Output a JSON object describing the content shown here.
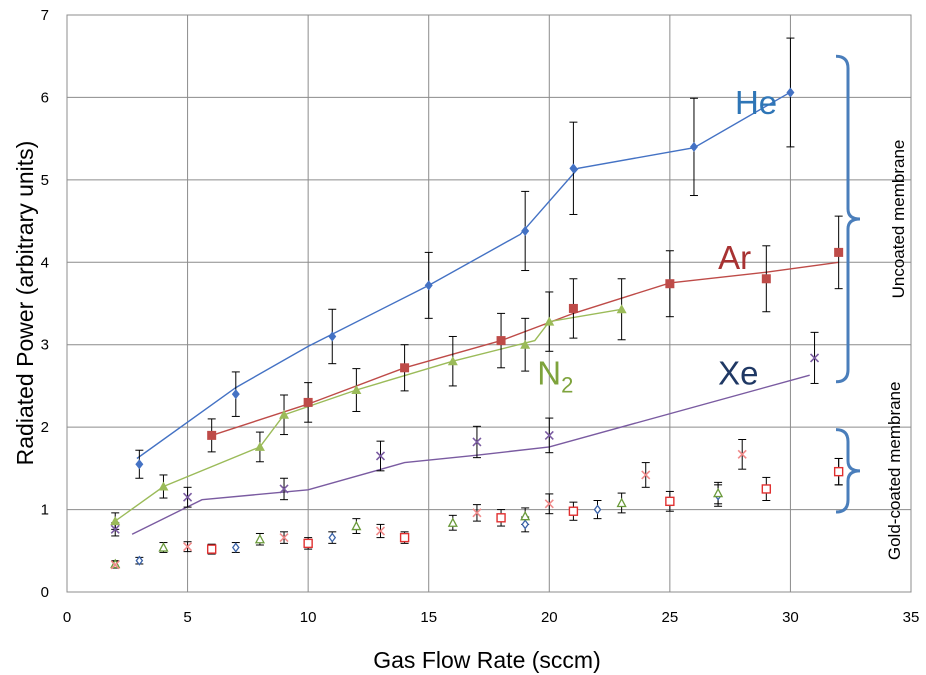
{
  "chart_data": {
    "type": "scatter",
    "xlabel": "Gas Flow Rate (sccm)",
    "ylabel": "Radiated Power (arbitrary units)",
    "xlim": [
      0,
      35
    ],
    "ylim": [
      0,
      7
    ],
    "xticks": [
      "0",
      "5",
      "10",
      "15",
      "20",
      "25",
      "30",
      "35"
    ],
    "yticks": [
      "0",
      "1",
      "2",
      "3",
      "4",
      "5",
      "6",
      "7"
    ],
    "grid": true,
    "series_labels": [
      {
        "text": "He",
        "color": "#2e75b6",
        "x": 27.7,
        "y": 5.8
      },
      {
        "text": "Ar",
        "color": "#a83232",
        "x": 27.0,
        "y": 3.92
      },
      {
        "text": "N",
        "sub": "2",
        "color": "#7ea33c",
        "x": 19.5,
        "y": 2.52
      },
      {
        "text": "Xe",
        "color": "#1f3864",
        "x": 27.0,
        "y": 2.52
      }
    ],
    "brackets": [
      {
        "label": "Uncoated membrane",
        "y_top": 6.5,
        "y_bottom": 2.55
      },
      {
        "label": "Gold-coated membrane",
        "y_top": 1.97,
        "y_bottom": 0.97
      }
    ],
    "series": [
      {
        "key": "He",
        "membrane": "uncoated",
        "marker": "diamond",
        "color": "#4472c4",
        "points": [
          {
            "x": 3,
            "y": 1.55,
            "err": 0.17
          },
          {
            "x": 7,
            "y": 2.4,
            "err": 0.27
          },
          {
            "x": 11,
            "y": 3.1,
            "err": 0.33
          },
          {
            "x": 15,
            "y": 3.72,
            "err": 0.4
          },
          {
            "x": 19,
            "y": 4.38,
            "err": 0.48
          },
          {
            "x": 21,
            "y": 5.14,
            "err": 0.56
          },
          {
            "x": 26,
            "y": 5.4,
            "err": 0.59
          },
          {
            "x": 30,
            "y": 6.06,
            "err": 0.66
          }
        ],
        "fit": [
          [
            2.9,
            1.62
          ],
          [
            7,
            2.48
          ],
          [
            10,
            2.98
          ],
          [
            15,
            3.72
          ],
          [
            18.8,
            4.34
          ],
          [
            21.2,
            5.14
          ],
          [
            26,
            5.39
          ],
          [
            30.1,
            6.08
          ]
        ]
      },
      {
        "key": "Ar",
        "membrane": "uncoated",
        "marker": "square",
        "color": "#be4b48",
        "points": [
          {
            "x": 6,
            "y": 1.9,
            "err": 0.2
          },
          {
            "x": 10,
            "y": 2.3,
            "err": 0.24
          },
          {
            "x": 14,
            "y": 2.72,
            "err": 0.28
          },
          {
            "x": 18,
            "y": 3.05,
            "err": 0.33
          },
          {
            "x": 21,
            "y": 3.44,
            "err": 0.36
          },
          {
            "x": 25,
            "y": 3.74,
            "err": 0.4
          },
          {
            "x": 29,
            "y": 3.8,
            "err": 0.4
          },
          {
            "x": 32,
            "y": 4.12,
            "err": 0.44
          }
        ],
        "fit": [
          [
            6,
            1.9
          ],
          [
            10,
            2.28
          ],
          [
            14,
            2.72
          ],
          [
            18,
            3.05
          ],
          [
            21,
            3.38
          ],
          [
            25,
            3.75
          ],
          [
            29,
            3.88
          ],
          [
            32,
            4.0
          ]
        ]
      },
      {
        "key": "N2",
        "membrane": "uncoated",
        "marker": "triangle",
        "color": "#9bbb59",
        "points": [
          {
            "x": 2,
            "y": 0.86,
            "err": 0.1
          },
          {
            "x": 4,
            "y": 1.28,
            "err": 0.14
          },
          {
            "x": 8,
            "y": 1.76,
            "err": 0.18
          },
          {
            "x": 9,
            "y": 2.15,
            "err": 0.24
          },
          {
            "x": 12,
            "y": 2.45,
            "err": 0.26
          },
          {
            "x": 16,
            "y": 2.8,
            "err": 0.3
          },
          {
            "x": 19,
            "y": 3.0,
            "err": 0.32
          },
          {
            "x": 20,
            "y": 3.28,
            "err": 0.36
          },
          {
            "x": 23,
            "y": 3.43,
            "err": 0.37
          }
        ],
        "fit": [
          [
            2,
            0.86
          ],
          [
            4,
            1.28
          ],
          [
            8,
            1.76
          ],
          [
            9,
            2.15
          ],
          [
            12,
            2.45
          ],
          [
            16,
            2.8
          ],
          [
            19.4,
            3.05
          ],
          [
            20,
            3.28
          ],
          [
            23,
            3.43
          ]
        ]
      },
      {
        "key": "Xe",
        "membrane": "uncoated",
        "marker": "x",
        "color": "#7a5ba1",
        "points": [
          {
            "x": 2,
            "y": 0.76,
            "err": 0.08
          },
          {
            "x": 5,
            "y": 1.15,
            "err": 0.12
          },
          {
            "x": 9,
            "y": 1.25,
            "err": 0.13
          },
          {
            "x": 13,
            "y": 1.65,
            "err": 0.18
          },
          {
            "x": 17,
            "y": 1.82,
            "err": 0.19
          },
          {
            "x": 20,
            "y": 1.9,
            "err": 0.21
          },
          {
            "x": 31,
            "y": 2.84,
            "err": 0.31
          }
        ],
        "fit": [
          [
            2.7,
            0.7
          ],
          [
            5.6,
            1.12
          ],
          [
            10,
            1.24
          ],
          [
            14,
            1.57
          ],
          [
            17,
            1.66
          ],
          [
            20,
            1.76
          ],
          [
            30.8,
            2.63
          ]
        ]
      },
      {
        "key": "He",
        "membrane": "gold-coated",
        "marker": "open-diamond",
        "color": "#3b63a8",
        "points": [
          {
            "x": 3,
            "y": 0.38,
            "err": 0.04
          },
          {
            "x": 7,
            "y": 0.54,
            "err": 0.06
          },
          {
            "x": 11,
            "y": 0.66,
            "err": 0.07
          },
          {
            "x": 19,
            "y": 0.82,
            "err": 0.09
          },
          {
            "x": 22,
            "y": 1.0,
            "err": 0.11
          },
          {
            "x": 27,
            "y": 1.17,
            "err": 0.13
          },
          {
            "x": 32,
            "y": 1.46,
            "err": 0.16
          }
        ]
      },
      {
        "key": "Ar",
        "membrane": "gold-coated",
        "marker": "open-square",
        "color": "#e03030",
        "points": [
          {
            "x": 6,
            "y": 0.52,
            "err": 0.06
          },
          {
            "x": 10,
            "y": 0.59,
            "err": 0.07
          },
          {
            "x": 14,
            "y": 0.66,
            "err": 0.07
          },
          {
            "x": 18,
            "y": 0.9,
            "err": 0.1
          },
          {
            "x": 21,
            "y": 0.98,
            "err": 0.11
          },
          {
            "x": 25,
            "y": 1.1,
            "err": 0.12
          },
          {
            "x": 29,
            "y": 1.25,
            "err": 0.14
          },
          {
            "x": 32,
            "y": 1.46,
            "err": 0.16
          }
        ]
      },
      {
        "key": "N2",
        "membrane": "gold-coated",
        "marker": "open-triangle",
        "color": "#6a9a3a",
        "points": [
          {
            "x": 2,
            "y": 0.34,
            "err": 0.04
          },
          {
            "x": 4,
            "y": 0.54,
            "err": 0.06
          },
          {
            "x": 8,
            "y": 0.64,
            "err": 0.07
          },
          {
            "x": 12,
            "y": 0.8,
            "err": 0.09
          },
          {
            "x": 16,
            "y": 0.84,
            "err": 0.09
          },
          {
            "x": 19,
            "y": 0.92,
            "err": 0.1
          },
          {
            "x": 23,
            "y": 1.08,
            "err": 0.12
          },
          {
            "x": 27,
            "y": 1.2,
            "err": 0.13
          }
        ]
      },
      {
        "key": "Xe",
        "membrane": "gold-coated",
        "marker": "x",
        "color": "#f08a8a",
        "points": [
          {
            "x": 2,
            "y": 0.33,
            "err": 0.04
          },
          {
            "x": 5,
            "y": 0.55,
            "err": 0.06
          },
          {
            "x": 9,
            "y": 0.66,
            "err": 0.07
          },
          {
            "x": 13,
            "y": 0.74,
            "err": 0.08
          },
          {
            "x": 17,
            "y": 0.96,
            "err": 0.1
          },
          {
            "x": 20,
            "y": 1.07,
            "err": 0.12
          },
          {
            "x": 24,
            "y": 1.42,
            "err": 0.15
          },
          {
            "x": 28,
            "y": 1.67,
            "err": 0.18
          }
        ]
      }
    ]
  }
}
